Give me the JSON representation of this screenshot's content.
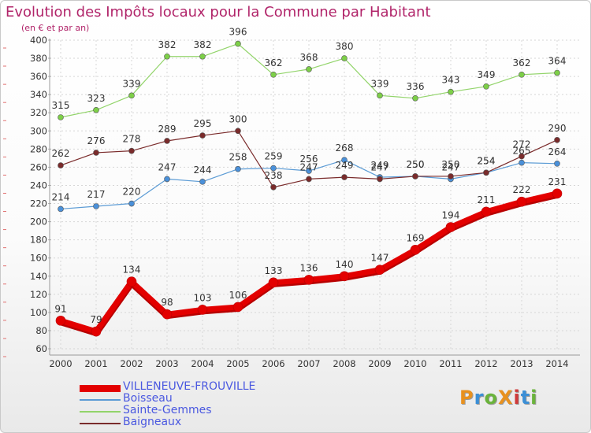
{
  "header": {
    "title": "Evolution des Impôts locaux pour la Commune par Habitant",
    "subtitle": "(en € et par an)"
  },
  "logo": {
    "text": "ProXiti",
    "colors": [
      "#e8911e",
      "#3b8fd6",
      "#6ab33b",
      "#e8911e",
      "#cf3a3a",
      "#3b8fd6",
      "#6ab33b"
    ]
  },
  "chart_data": {
    "type": "line",
    "title": "Evolution des Impôts locaux pour la Commune par Habitant",
    "subtitle": "(en € et par an)",
    "xlabel": "",
    "ylabel": "",
    "x": [
      "2000",
      "2001",
      "2002",
      "2003",
      "2004",
      "2005",
      "2006",
      "2007",
      "2008",
      "2009",
      "2010",
      "2011",
      "2012",
      "2013",
      "2014"
    ],
    "ylim": [
      60,
      400
    ],
    "yticks": [
      60,
      80,
      100,
      120,
      140,
      160,
      180,
      200,
      220,
      240,
      260,
      280,
      300,
      320,
      340,
      360,
      380,
      400
    ],
    "grid": true,
    "legend_position": "bottom-left",
    "series": [
      {
        "name": "VILLENEUVE-FROUVILLE",
        "color": "#e30000",
        "point_color": "#e30000",
        "line_width": 7,
        "point_radius": 6,
        "values": [
          91,
          79,
          134,
          98,
          103,
          106,
          133,
          136,
          140,
          147,
          169,
          194,
          211,
          222,
          231
        ]
      },
      {
        "name": "Boisseau",
        "color": "#5b9bd5",
        "point_color": "#4a90d9",
        "line_width": 1.2,
        "point_radius": 3.5,
        "values": [
          214,
          217,
          220,
          247,
          244,
          258,
          259,
          256,
          268,
          249,
          250,
          247,
          254,
          265,
          264
        ]
      },
      {
        "name": "Sainte-Gemmes",
        "color": "#92d46a",
        "point_color": "#7dcf48",
        "line_width": 1.2,
        "point_radius": 3.5,
        "values": [
          315,
          323,
          339,
          382,
          382,
          396,
          362,
          368,
          380,
          339,
          336,
          343,
          349,
          362,
          364
        ]
      },
      {
        "name": "Baigneaux",
        "color": "#7a2b2b",
        "point_color": "#7a2b2b",
        "line_width": 1.2,
        "point_radius": 3.5,
        "values": [
          262,
          276,
          278,
          289,
          295,
          300,
          238,
          247,
          249,
          247,
          250,
          250,
          254,
          272,
          290
        ]
      }
    ]
  }
}
